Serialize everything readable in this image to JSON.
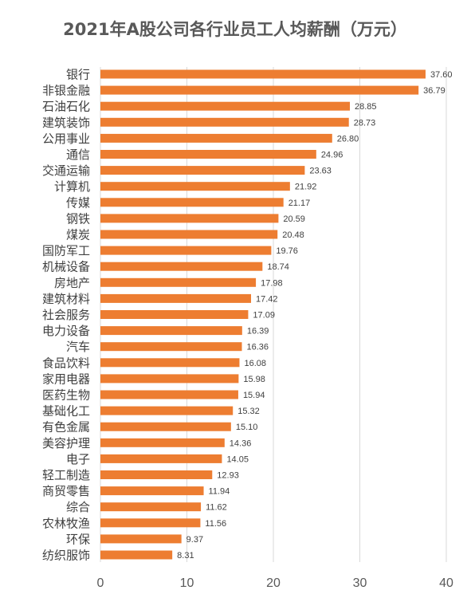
{
  "chart_data": {
    "type": "bar",
    "orientation": "horizontal",
    "title": "2021年A股公司各行业员工人均薪酬（万元）",
    "xlabel": "",
    "ylabel": "",
    "xlim": [
      0,
      40
    ],
    "x_ticks": [
      "0",
      "10",
      "20",
      "30",
      "40"
    ],
    "grid": true,
    "bar_color": "#ED7D31",
    "categories": [
      "银行",
      "非银金融",
      "石油石化",
      "建筑装饰",
      "公用事业",
      "通信",
      "交通运输",
      "计算机",
      "传媒",
      "钢铁",
      "煤炭",
      "国防军工",
      "机械设备",
      "房地产",
      "建筑材料",
      "社会服务",
      "电力设备",
      "汽车",
      "食品饮料",
      "家用电器",
      "医药生物",
      "基础化工",
      "有色金属",
      "美容护理",
      "电子",
      "轻工制造",
      "商贸零售",
      "综合",
      "农林牧渔",
      "环保",
      "纺织服饰"
    ],
    "values": [
      37.6,
      36.79,
      28.85,
      28.73,
      26.8,
      24.96,
      23.63,
      21.92,
      21.17,
      20.59,
      20.48,
      19.76,
      18.74,
      17.98,
      17.42,
      17.09,
      16.39,
      16.36,
      16.08,
      15.98,
      15.94,
      15.32,
      15.1,
      14.36,
      14.05,
      12.93,
      11.94,
      11.62,
      11.56,
      9.37,
      8.31
    ],
    "value_labels": [
      "37.60",
      "36.79",
      "28.85",
      "28.73",
      "26.80",
      "24.96",
      "23.63",
      "21.92",
      "21.17",
      "20.59",
      "20.48",
      "19.76",
      "18.74",
      "17.98",
      "17.42",
      "17.09",
      "16.39",
      "16.36",
      "16.08",
      "15.98",
      "15.94",
      "15.32",
      "15.10",
      "14.36",
      "14.05",
      "12.93",
      "11.94",
      "11.62",
      "11.56",
      "9.37",
      "8.31"
    ]
  }
}
